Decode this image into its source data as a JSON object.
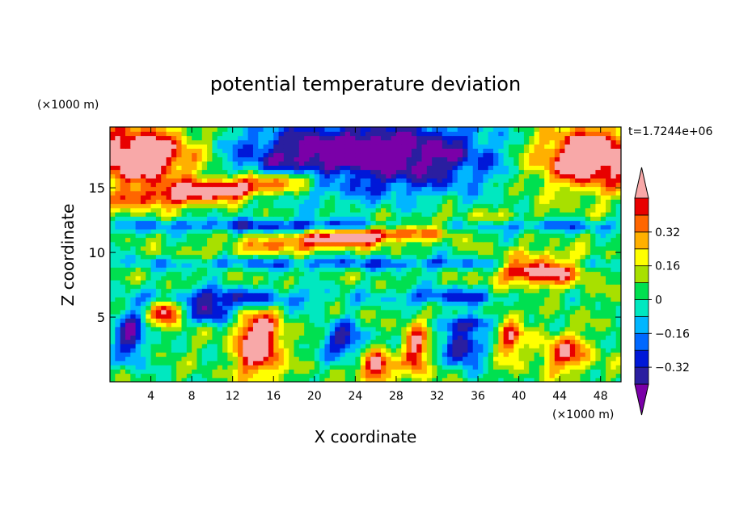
{
  "chart_data": {
    "type": "heatmap",
    "title": "potential temperature deviation",
    "xlabel": "X coordinate",
    "ylabel": "Z coordinate",
    "x_unit": "(×1000 m)",
    "y_unit": "(×1000 m)",
    "time_label": "t=1.7244e+06",
    "xlim": [
      0,
      50
    ],
    "ylim": [
      0,
      19.7
    ],
    "x_ticks": [
      4,
      8,
      12,
      16,
      20,
      24,
      28,
      32,
      36,
      40,
      44,
      48
    ],
    "y_ticks": [
      5,
      10,
      15
    ],
    "colorbar": {
      "levels": [
        -0.48,
        -0.4,
        -0.32,
        -0.24,
        -0.16,
        -0.08,
        0,
        0.08,
        0.16,
        0.24,
        0.32,
        0.4,
        0.48
      ],
      "labeled_levels": [
        0.32,
        0.16,
        0,
        -0.16,
        -0.32
      ],
      "tick_labels": [
        "0.32",
        "0.16",
        "0",
        "−0.16",
        "−0.32"
      ],
      "colors": [
        "#7a00a8",
        "#2a1ea0",
        "#0018d8",
        "#0068ff",
        "#00b6ff",
        "#00e8c0",
        "#00e050",
        "#a8e000",
        "#ffff00",
        "#ffb000",
        "#ff6600",
        "#e80000",
        "#f8a8a8"
      ],
      "extend": "both"
    },
    "grid": false
  }
}
